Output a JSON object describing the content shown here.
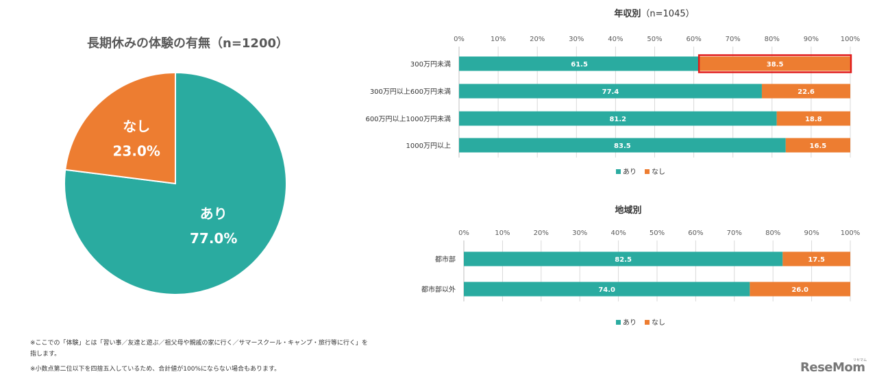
{
  "colors": {
    "ari": "#2aaba0",
    "nashi": "#ed7d31",
    "highlight": "#e01b1b",
    "grid": "#d9d9d9",
    "text": "#595959"
  },
  "chart_data": [
    {
      "type": "pie",
      "title": "長期休みの体験の有無（n=1200）",
      "slices": [
        {
          "name": "あり",
          "value": 77.0,
          "label": "77.0%"
        },
        {
          "name": "なし",
          "value": 23.0,
          "label": "23.0%"
        }
      ]
    },
    {
      "type": "bar",
      "orientation": "horizontal",
      "stacked": true,
      "title": "年収別",
      "title_suffix": "（n=1045）",
      "categories": [
        "300万円未満",
        "300万円以上600万円未満",
        "600万円以上1000万円未満",
        "1000万円以上"
      ],
      "series": [
        {
          "name": "あり",
          "values": [
            61.5,
            77.4,
            81.2,
            83.5
          ]
        },
        {
          "name": "なし",
          "values": [
            38.5,
            22.6,
            18.8,
            16.5
          ]
        }
      ],
      "xlim": [
        0,
        100
      ],
      "ticks": [
        "0%",
        "10%",
        "20%",
        "30%",
        "40%",
        "50%",
        "60%",
        "70%",
        "80%",
        "90%",
        "100%"
      ],
      "highlight": {
        "category": "300万円未満",
        "series": "なし"
      },
      "legend": "bottom"
    },
    {
      "type": "bar",
      "orientation": "horizontal",
      "stacked": true,
      "title": "地域別",
      "categories": [
        "都市部",
        "都市部以外"
      ],
      "series": [
        {
          "name": "あり",
          "values": [
            82.5,
            74.0
          ]
        },
        {
          "name": "なし",
          "values": [
            17.5,
            26.0
          ]
        }
      ],
      "xlim": [
        0,
        100
      ],
      "ticks": [
        "0%",
        "10%",
        "20%",
        "30%",
        "40%",
        "50%",
        "60%",
        "70%",
        "80%",
        "90%",
        "100%"
      ],
      "legend": "bottom"
    }
  ],
  "footnotes": [
    "※ここでの「体験」とは「習い事／友達と遊ぶ／祖父母や親戚の家に行く／サマースクール・キャンプ・旅行等に行く」を",
    "指します。",
    "※小数点第二位以下を四捨五入しているため、合計値が100%にならない場合もあります。"
  ],
  "logo": {
    "text": "ReseMom",
    "sub": "リセマム"
  }
}
